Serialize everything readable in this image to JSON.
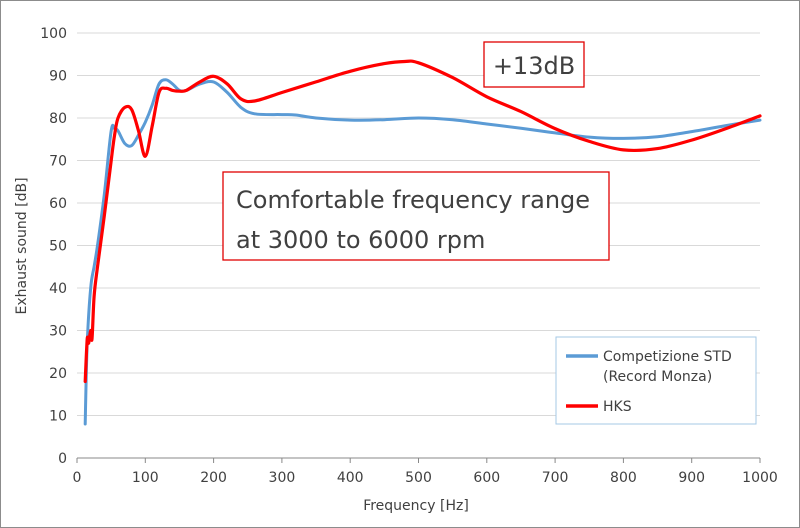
{
  "chart_data": {
    "type": "line",
    "xlabel": "Frequency [Hz]",
    "ylabel": "Exhaust sound [dB]",
    "xlim": [
      0,
      1000
    ],
    "ylim": [
      0,
      100
    ],
    "xticks": [
      0,
      100,
      200,
      300,
      400,
      500,
      600,
      700,
      800,
      900,
      1000
    ],
    "yticks": [
      0,
      10,
      20,
      30,
      40,
      50,
      60,
      70,
      80,
      90,
      100
    ],
    "grid": "horizontal",
    "legend_position": "bottom-right",
    "series": [
      {
        "name": "Competizione STD\n(Record Monza)",
        "color": "#5b9bd5",
        "x": [
          12,
          15,
          20,
          25,
          30,
          40,
          50,
          55,
          60,
          70,
          80,
          90,
          100,
          110,
          120,
          130,
          140,
          150,
          160,
          180,
          200,
          220,
          240,
          260,
          300,
          320,
          350,
          400,
          450,
          500,
          550,
          600,
          650,
          700,
          750,
          800,
          850,
          900,
          950,
          1000
        ],
        "y": [
          8,
          27,
          40,
          45,
          50,
          62,
          77,
          77.5,
          77,
          74,
          73.5,
          76,
          79,
          83,
          88,
          89,
          88,
          86.5,
          86.5,
          88,
          88.5,
          86,
          82.5,
          81,
          80.8,
          80.7,
          80,
          79.5,
          79.6,
          80,
          79.6,
          78.6,
          77.6,
          76.5,
          75.5,
          75.2,
          75.6,
          76.8,
          78.2,
          79.5
        ]
      },
      {
        "name": "HKS",
        "color": "#ff0000",
        "x": [
          12,
          15,
          17,
          20,
          22,
          25,
          30,
          40,
          50,
          55,
          60,
          70,
          80,
          90,
          100,
          110,
          120,
          130,
          140,
          150,
          160,
          180,
          200,
          220,
          240,
          260,
          300,
          350,
          400,
          450,
          480,
          500,
          550,
          600,
          650,
          700,
          750,
          800,
          850,
          900,
          950,
          1000
        ],
        "y": [
          18,
          28,
          27,
          30,
          28,
          38,
          45,
          57,
          70,
          76,
          80,
          82.5,
          82,
          77,
          71,
          78,
          86,
          87,
          86.5,
          86.3,
          86.5,
          88.5,
          89.8,
          88,
          84.5,
          84,
          86,
          88.5,
          91,
          92.8,
          93.3,
          93,
          89.5,
          85,
          81.5,
          77.5,
          74.5,
          72.5,
          72.8,
          74.8,
          77.5,
          80.5
        ]
      }
    ],
    "annotations": [
      {
        "text": "+13dB",
        "x": 490,
        "y": 92
      },
      {
        "text": "Comfortable frequency range\nat 3000 to 6000 rpm",
        "x": 390,
        "y": 57
      }
    ]
  }
}
